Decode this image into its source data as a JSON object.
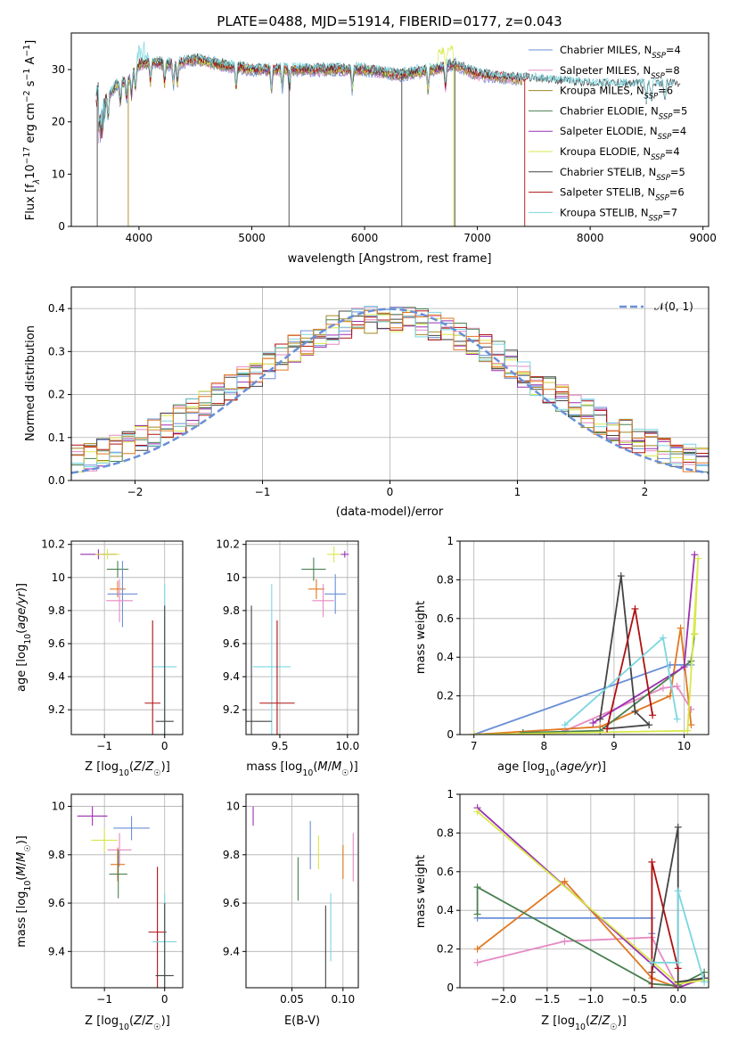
{
  "figure_title": "PLATE=0488, MJD=51914, FIBERID=0177, z=0.043",
  "colors": {
    "Chabrier MILES": "#6a8fd8",
    "Salpeter MILES": "#e58ac3",
    "Kroupa MILES": "#a08820",
    "Chabrier ELODIE": "#4a8050",
    "Salpeter ELODIE": "#9b30b0",
    "Kroupa ELODIE": "#d8e848",
    "Chabrier STELIB": "#444444",
    "Salpeter STELIB": "#b01010",
    "Kroupa STELIB": "#7ad6e0",
    "Normal": "#6a8fd8",
    "Extra orange": "#e07820",
    "Grid": "#b0b0b0"
  },
  "chart_data": [
    {
      "type": "line",
      "title": "PLATE=0488, MJD=51914, FIBERID=0177, z=0.043",
      "xlabel": "wavelength [Angstrom, rest frame]",
      "ylabel": "Flux [f_λ10^−17 erg cm^−2 s^−1 A^−1]",
      "xlim": [
        3400,
        9050
      ],
      "ylim": [
        0,
        37
      ],
      "xticks": [
        4000,
        5000,
        6000,
        7000,
        8000,
        9000
      ],
      "yticks": [
        0,
        10,
        20,
        30
      ],
      "legend_position": "right",
      "series": [
        {
          "name": "Chabrier MILES, N_SSP=4",
          "label_main": "Chabrier MILES, N",
          "label_sub": "SSP",
          "label_end": "=4"
        },
        {
          "name": "Salpeter MILES, N_SSP=8",
          "label_main": "Salpeter MILES, N",
          "label_sub": "SSP",
          "label_end": "=8"
        },
        {
          "name": "Kroupa MILES, N_SSP=6",
          "label_main": "Kroupa MILES, N",
          "label_sub": "SSP",
          "label_end": "=6"
        },
        {
          "name": "Chabrier ELODIE, N_SSP=5",
          "label_main": "Chabrier ELODIE, N",
          "label_sub": "SSP",
          "label_end": "=5"
        },
        {
          "name": "Salpeter ELODIE, N_SSP=4",
          "label_main": "Salpeter ELODIE, N",
          "label_sub": "SSP",
          "label_end": "=4"
        },
        {
          "name": "Kroupa ELODIE, N_SSP=4",
          "label_main": "Kroupa ELODIE, N",
          "label_sub": "SSP",
          "label_end": "=4"
        },
        {
          "name": "Chabrier STELIB, N_SSP=5",
          "label_main": "Chabrier STELIB, N",
          "label_sub": "SSP",
          "label_end": "=5"
        },
        {
          "name": "Salpeter STELIB, N_SSP=6",
          "label_main": "Salpeter STELIB, N",
          "label_sub": "SSP",
          "label_end": "=6"
        },
        {
          "name": "Kroupa STELIB, N_SSP=7",
          "label_main": "Kroupa STELIB, N",
          "label_sub": "SSP",
          "label_end": "=7"
        }
      ],
      "spectrum_shape": {
        "x": [
          3640,
          3700,
          3800,
          3900,
          4000,
          4100,
          4300,
          4500,
          4700,
          5000,
          5300,
          5600,
          6000,
          6300,
          6600,
          6800,
          7000,
          7500,
          8000,
          8500,
          8800
        ],
        "y": [
          22,
          24,
          27,
          28,
          31,
          31.5,
          31,
          32,
          31,
          30,
          30,
          30,
          30,
          29,
          30,
          31,
          29,
          28,
          27,
          27,
          27
        ]
      }
    },
    {
      "type": "bar",
      "xlabel": "(data-model)/error",
      "ylabel": "Normed distribution",
      "xlim": [
        -2.5,
        2.5
      ],
      "ylim": [
        0,
        0.45
      ],
      "xticks": [
        -2,
        -1,
        0,
        1,
        2
      ],
      "xtick_labels": [
        "−2",
        "−1",
        "0",
        "1",
        "2"
      ],
      "yticks": [
        0.0,
        0.1,
        0.2,
        0.3,
        0.4
      ],
      "ytick_labels": [
        "0.0",
        "0.1",
        "0.2",
        "0.3",
        "0.4"
      ],
      "legend": "𝒩(0, 1)",
      "legend_position": "top-right",
      "bin_width": 0.1,
      "normal_curve": {
        "mean": 0,
        "sigma": 1
      }
    },
    {
      "type": "scatter",
      "xlabel": "Z [log10(Z/Z☉)]",
      "ylabel": "age [log10(age/yr)]",
      "xlim": [
        -1.55,
        0.3
      ],
      "ylim": [
        9.05,
        10.22
      ],
      "xticks": [
        -1,
        0
      ],
      "xtick_labels": [
        "−1",
        "0"
      ],
      "yticks": [
        9.2,
        9.4,
        9.6,
        9.8,
        10.0,
        10.2
      ],
      "points": [
        {
          "series": "Salpeter ELODIE",
          "x": -1.1,
          "xerr": 0.3,
          "y": 10.14,
          "yerr": 0.03
        },
        {
          "series": "Kroupa ELODIE",
          "x": -0.95,
          "xerr": 0.2,
          "y": 10.14,
          "yerr": 0.03
        },
        {
          "series": "Chabrier ELODIE",
          "x": -0.78,
          "xerr": 0.18,
          "y": 10.05,
          "yerr": 0.05
        },
        {
          "series": "Extra orange",
          "x": -0.78,
          "xerr": 0.13,
          "y": 9.93,
          "yerr": 0.05
        },
        {
          "series": "Chabrier MILES",
          "x": -0.7,
          "xerr": 0.25,
          "y": 9.9,
          "yerr": 0.2
        },
        {
          "series": "Salpeter MILES",
          "x": -0.75,
          "xerr": 0.22,
          "y": 9.86,
          "yerr": 0.13
        },
        {
          "series": "Kroupa STELIB",
          "x": 0.0,
          "xerr": 0.2,
          "y": 9.46,
          "yerr": 0.5
        },
        {
          "series": "Salpeter STELIB",
          "x": -0.2,
          "xerr": 0.13,
          "y": 9.24,
          "yerr": 0.5
        },
        {
          "series": "Chabrier STELIB",
          "x": 0.0,
          "xerr": 0.15,
          "y": 9.13,
          "yerr": 0.7
        }
      ]
    },
    {
      "type": "scatter",
      "xlabel": "mass [log10(M/M☉)]",
      "xlim": [
        9.25,
        10.08
      ],
      "ylim": [
        9.05,
        10.22
      ],
      "xticks": [
        9.5,
        10.0
      ],
      "xtick_labels": [
        "9.5",
        "10.0"
      ],
      "yticks": [
        9.2,
        9.4,
        9.6,
        9.8,
        10.0,
        10.2
      ],
      "points": [
        {
          "series": "Salpeter ELODIE",
          "x": 9.98,
          "xerr": 0.03,
          "y": 10.14,
          "yerr": 0.02
        },
        {
          "series": "Kroupa ELODIE",
          "x": 9.9,
          "xerr": 0.05,
          "y": 10.14,
          "yerr": 0.05
        },
        {
          "series": "Chabrier ELODIE",
          "x": 9.75,
          "xerr": 0.09,
          "y": 10.05,
          "yerr": 0.07
        },
        {
          "series": "Extra orange",
          "x": 9.77,
          "xerr": 0.06,
          "y": 9.93,
          "yerr": 0.06
        },
        {
          "series": "Chabrier MILES",
          "x": 9.91,
          "xerr": 0.08,
          "y": 9.9,
          "yerr": 0.12
        },
        {
          "series": "Salpeter MILES",
          "x": 9.82,
          "xerr": 0.08,
          "y": 9.86,
          "yerr": 0.1
        },
        {
          "series": "Kroupa STELIB",
          "x": 9.44,
          "xerr": 0.14,
          "y": 9.46,
          "yerr": 0.5
        },
        {
          "series": "Salpeter STELIB",
          "x": 9.48,
          "xerr": 0.13,
          "y": 9.24,
          "yerr": 0.5
        },
        {
          "series": "Chabrier STELIB",
          "x": 9.29,
          "xerr": 0.15,
          "y": 9.13,
          "yerr": 0.7
        }
      ]
    },
    {
      "type": "line",
      "xlabel": "age [log10(age/yr)]",
      "ylabel": "mass weight",
      "xlim": [
        6.8,
        10.35
      ],
      "ylim": [
        0,
        1.0
      ],
      "xticks": [
        7,
        8,
        9,
        10
      ],
      "yticks": [
        0.0,
        0.2,
        0.4,
        0.6,
        0.8,
        1.0
      ],
      "series": [
        {
          "name": "Chabrier MILES",
          "x": [
            7.0,
            9.8,
            10.1
          ],
          "y": [
            0.0,
            0.36,
            0.36
          ]
        },
        {
          "name": "Salpeter MILES",
          "x": [
            8.3,
            9.7,
            9.9,
            10.1
          ],
          "y": [
            0.02,
            0.24,
            0.25,
            0.13
          ]
        },
        {
          "name": "Extra orange",
          "x": [
            7.0,
            8.8,
            9.8,
            9.95,
            10.1
          ],
          "y": [
            0.0,
            0.04,
            0.2,
            0.55,
            0.05
          ]
        },
        {
          "name": "Chabrier ELODIE",
          "x": [
            7.7,
            8.8,
            10.1,
            10.15
          ],
          "y": [
            0.01,
            0.02,
            0.38,
            0.52
          ]
        },
        {
          "name": "Salpeter ELODIE",
          "x": [
            8.7,
            10.0,
            10.15
          ],
          "y": [
            0.06,
            0.35,
            0.93
          ]
        },
        {
          "name": "Kroupa ELODIE",
          "x": [
            7.0,
            10.05,
            10.2,
            10.15
          ],
          "y": [
            0.0,
            0.02,
            0.91,
            0.52
          ]
        },
        {
          "name": "Chabrier STELIB",
          "x": [
            8.8,
            9.1,
            9.3,
            9.5,
            8.9
          ],
          "y": [
            0.08,
            0.82,
            0.12,
            0.05,
            0.03
          ]
        },
        {
          "name": "Salpeter STELIB",
          "x": [
            8.9,
            9.3,
            9.55
          ],
          "y": [
            0.03,
            0.65,
            0.1
          ]
        },
        {
          "name": "Kroupa STELIB",
          "x": [
            8.3,
            9.7,
            9.9
          ],
          "y": [
            0.05,
            0.5,
            0.08
          ]
        }
      ]
    },
    {
      "type": "scatter",
      "xlabel": "Z [log10(Z/Z☉)]",
      "ylabel": "mass [log10(M/M☉)]",
      "xlim": [
        -1.55,
        0.3
      ],
      "ylim": [
        9.25,
        10.05
      ],
      "xticks": [
        -1,
        0
      ],
      "xtick_labels": [
        "−1",
        "0"
      ],
      "yticks": [
        9.4,
        9.6,
        9.8,
        10.0
      ],
      "points": [
        {
          "series": "Salpeter ELODIE",
          "x": -1.2,
          "xerr": 0.25,
          "y": 9.96,
          "yerr": 0.04
        },
        {
          "series": "Chabrier MILES",
          "x": -0.55,
          "xerr": 0.3,
          "y": 9.91,
          "yerr": 0.05
        },
        {
          "series": "Kroupa ELODIE",
          "x": -1.0,
          "xerr": 0.22,
          "y": 9.86,
          "yerr": 0.05
        },
        {
          "series": "Salpeter MILES",
          "x": -0.75,
          "xerr": 0.2,
          "y": 9.82,
          "yerr": 0.07
        },
        {
          "series": "Extra orange",
          "x": -0.78,
          "xerr": 0.12,
          "y": 9.76,
          "yerr": 0.07
        },
        {
          "series": "Chabrier ELODIE",
          "x": -0.77,
          "xerr": 0.15,
          "y": 9.72,
          "yerr": 0.1
        },
        {
          "series": "Salpeter STELIB",
          "x": -0.12,
          "xerr": 0.15,
          "y": 9.48,
          "yerr": 0.27
        },
        {
          "series": "Kroupa STELIB",
          "x": 0.0,
          "xerr": 0.2,
          "y": 9.44,
          "yerr": 0.2
        },
        {
          "series": "Chabrier STELIB",
          "x": 0.0,
          "xerr": 0.15,
          "y": 9.3,
          "yerr": 0.3
        }
      ]
    },
    {
      "type": "scatter",
      "xlabel": "E(B-V)",
      "xlim": [
        0.005,
        0.115
      ],
      "ylim": [
        9.25,
        10.05
      ],
      "xticks": [
        0.05,
        0.1
      ],
      "xtick_labels": [
        "0.05",
        "0.10"
      ],
      "yticks": [
        9.4,
        9.6,
        9.8,
        10.0
      ],
      "points": [
        {
          "series": "Salpeter ELODIE",
          "x": 0.012,
          "y": 9.96,
          "yerr": 0.04
        },
        {
          "series": "Chabrier MILES",
          "x": 0.068,
          "y": 9.84,
          "yerr": 0.1
        },
        {
          "series": "Kroupa ELODIE",
          "x": 0.076,
          "y": 9.81,
          "yerr": 0.07
        },
        {
          "series": "Chabrier ELODIE",
          "x": 0.056,
          "y": 9.7,
          "yerr": 0.09
        },
        {
          "series": "Extra orange",
          "x": 0.1,
          "y": 9.77,
          "yerr": 0.07
        },
        {
          "series": "Salpeter MILES",
          "x": 0.11,
          "y": 9.79,
          "yerr": 0.1
        },
        {
          "series": "Kroupa STELIB",
          "x": 0.088,
          "y": 9.5,
          "yerr": 0.14
        },
        {
          "series": "Chabrier STELIB",
          "x": 0.083,
          "y": 9.42,
          "yerr": 0.17
        }
      ]
    },
    {
      "type": "line",
      "xlabel": "Z [log10(Z/Z☉)]",
      "ylabel": "mass weight",
      "xlim": [
        -2.5,
        0.35
      ],
      "ylim": [
        0,
        1.0
      ],
      "xticks": [
        -2.0,
        -1.5,
        -1.0,
        -0.5,
        0.0
      ],
      "xtick_labels": [
        "−2.0",
        "−1.5",
        "−1.0",
        "−0.5",
        "0.0"
      ],
      "yticks": [
        0.0,
        0.2,
        0.4,
        0.6,
        0.8,
        1.0
      ],
      "series": [
        {
          "name": "Chabrier MILES",
          "x": [
            -2.3,
            -0.3,
            -0.3
          ],
          "y": [
            0.36,
            0.36,
            0.28
          ]
        },
        {
          "name": "Salpeter MILES",
          "x": [
            -2.3,
            -1.3,
            -0.3,
            0.0
          ],
          "y": [
            0.13,
            0.24,
            0.26,
            0.0
          ]
        },
        {
          "name": "Extra orange",
          "x": [
            -2.3,
            -1.3,
            -0.3,
            0.0,
            0.3
          ],
          "y": [
            0.2,
            0.55,
            0.05,
            0.0,
            0.05
          ]
        },
        {
          "name": "Chabrier ELODIE",
          "x": [
            -2.3,
            -2.3,
            -0.3,
            0.0,
            0.3
          ],
          "y": [
            0.38,
            0.52,
            0.02,
            0.01,
            0.08
          ]
        },
        {
          "name": "Salpeter ELODIE",
          "x": [
            -2.3,
            0.0,
            0.3
          ],
          "y": [
            0.93,
            0.0,
            0.05
          ]
        },
        {
          "name": "Kroupa ELODIE",
          "x": [
            -2.3,
            0.0,
            0.3
          ],
          "y": [
            0.91,
            0.02,
            0.04
          ]
        },
        {
          "name": "Chabrier STELIB",
          "x": [
            -0.3,
            0.0,
            0.0,
            0.3
          ],
          "y": [
            0.08,
            0.83,
            0.03,
            0.05
          ]
        },
        {
          "name": "Salpeter STELIB",
          "x": [
            -0.3,
            -0.3,
            0.0
          ],
          "y": [
            0.0,
            0.65,
            0.1
          ]
        },
        {
          "name": "Kroupa STELIB",
          "x": [
            -0.3,
            0.0,
            0.0,
            0.3
          ],
          "y": [
            0.13,
            0.13,
            0.5,
            0.03
          ]
        }
      ]
    }
  ]
}
